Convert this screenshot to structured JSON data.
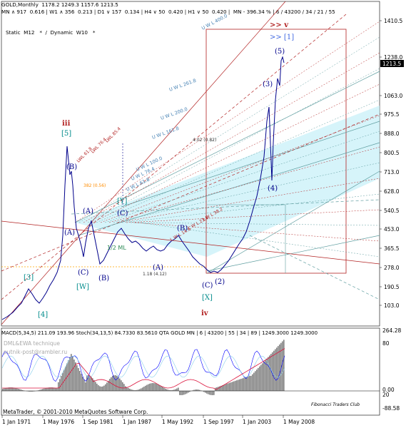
{
  "header": {
    "line1": "GOLD,Monthly  1178.2 1249.3 1157.6 1213.5",
    "line2": "MN ∧ 917  0.616 | W1 ∧ 356  0.213 | D1 ∨ 157  0.134 | H4 ∨ 50  0.420 | H1 ∨ 50  0.420 |  MN - 396.34 % | 6 / 43200 / 34 / 21 / 55",
    "line3": "Static  M12   *  /  Dynamic  W10   *"
  },
  "price_axis": [
    "1410.5",
    "1238.0",
    "1213.5",
    "1063.0",
    "975.5",
    "888.0",
    "800.5",
    "713.0",
    "628.0",
    "540.5",
    "453.0",
    "365.5",
    "278.0",
    "190.5",
    "103.0"
  ],
  "current_price": "1213.5",
  "time_axis": [
    "1 Jan 1971",
    "1 May 1976",
    "1 Sep 1981",
    "1 Jan 1987",
    "1 May 1992",
    "1 Sep 1997",
    "1 Jan 2003",
    "1 May 2008"
  ],
  "wave_labels": {
    "iii": "iii",
    "iv": "iv",
    "v": ">> v",
    "b5": "[5]",
    "b3": "[3]",
    "b4": "[4]",
    "W": "[W]",
    "X": "[X]",
    "Y": "[Y]",
    "top1": ">> [1]",
    "B1": "(B)",
    "A1": "(A)",
    "A2": "(A)",
    "C1": "(C)",
    "B2": "(B)",
    "C2": "(C)",
    "A3": "(A)",
    "B3": "(B)",
    "C3": "(C)",
    "c2": "(2)",
    "c3": "(3)",
    "c4": "(4)",
    "c5": "(5)",
    "ml": "1/2 ML",
    "f382": "382 (0.56)",
    "f402": "4.02 (0.82)",
    "f118": "1.18 (4.12)"
  },
  "uwl_labels": [
    "U W L 400.0",
    "U W L 261.8",
    "U W L 200.0",
    "U W L 161.8",
    "U W L 100.0",
    "U W L 76.4",
    "U W L 61.8"
  ],
  "lwl_labels": [
    "L W L 38.2",
    "L W L 23.6",
    "L W L 14.6",
    "LWL 61.8",
    "LWL 76.4",
    "LWL 85.4"
  ],
  "indicator": {
    "line1": "MACD(5,34,5) 211.09 193.96   Stoch(34,13,5) 84.7330 83.5610   QTA GOLD MN | 6 | 43200 | 55 | 34 | 89 | 1249.3000  1249.3000",
    "line2": "DML&EWA technique",
    "line3": "putnik-post@rambler.ru",
    "axis": [
      "264.28",
      "80",
      "0.00",
      "20",
      "-88.58"
    ],
    "club": "Fibonacci Traders Club"
  },
  "footer": "MetaTrader, © 2001-2010 MetaQuotes Software Corp.",
  "colors": {
    "price": "#00008b",
    "fan": "#b22222",
    "cyan": "#87ceeb",
    "band": "#c8f0f8",
    "macd": "#808080",
    "stoch": "#0000ff"
  }
}
